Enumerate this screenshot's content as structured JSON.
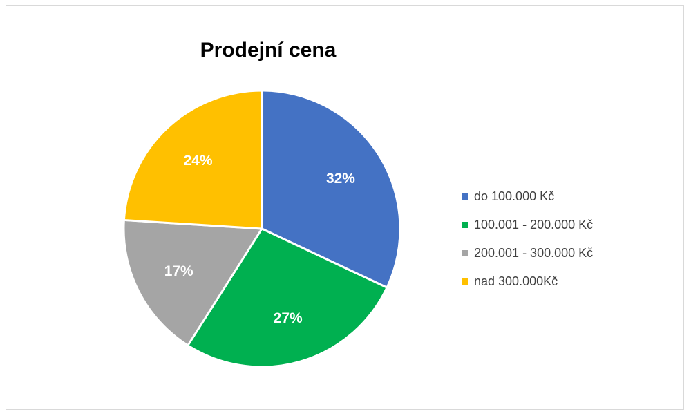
{
  "chart_data": {
    "type": "pie",
    "title": "Prodejní cena",
    "categories": [
      "do 100.000 Kč",
      "100.001 - 200.000 Kč",
      "200.001 - 300.000 Kč",
      "nad 300.000Kč"
    ],
    "values": [
      32,
      27,
      17,
      24
    ],
    "data_labels": [
      "32%",
      "27%",
      "17%",
      "24%"
    ],
    "colors": [
      "#4472C4",
      "#00B050",
      "#A5A5A5",
      "#FFC000"
    ],
    "label_color": "#FFFFFF",
    "legend_position": "right",
    "start_angle_deg": 0,
    "direction": "clockwise"
  }
}
